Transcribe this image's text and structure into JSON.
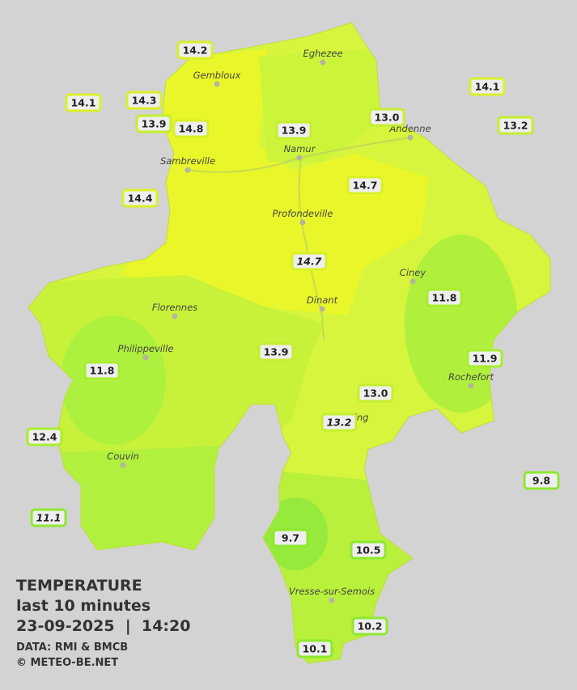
{
  "map": {
    "legend": {
      "title": "TEMPERATURE",
      "subtitle": "last 10 minutes",
      "datetime": "23-09-2025  |  14:20",
      "source": "DATA: RMI & BMCB",
      "copyright": "© METEO-BE.NET"
    },
    "cities": [
      "Eghezee",
      "Gembloux",
      "Andenne",
      "Namur",
      "Sambreville",
      "Profondeville",
      "Ciney",
      "Florennes",
      "Dinant",
      "Philippeville",
      "Rochefort",
      "Beauraing",
      "Couvin",
      "Vresse-sur-Semois"
    ],
    "stations": [
      "14.2",
      "14.1",
      "14.3",
      "13.9",
      "14.8",
      "13.9",
      "13.0",
      "14.1",
      "13.2",
      "14.4",
      "14.7",
      "14.7",
      "11.8",
      "11.8",
      "13.9",
      "11.9",
      "13.0",
      "13.2",
      "12.4",
      "9.8",
      "11.1",
      "9.7",
      "10.5",
      "10.2",
      "10.1"
    ]
  }
}
